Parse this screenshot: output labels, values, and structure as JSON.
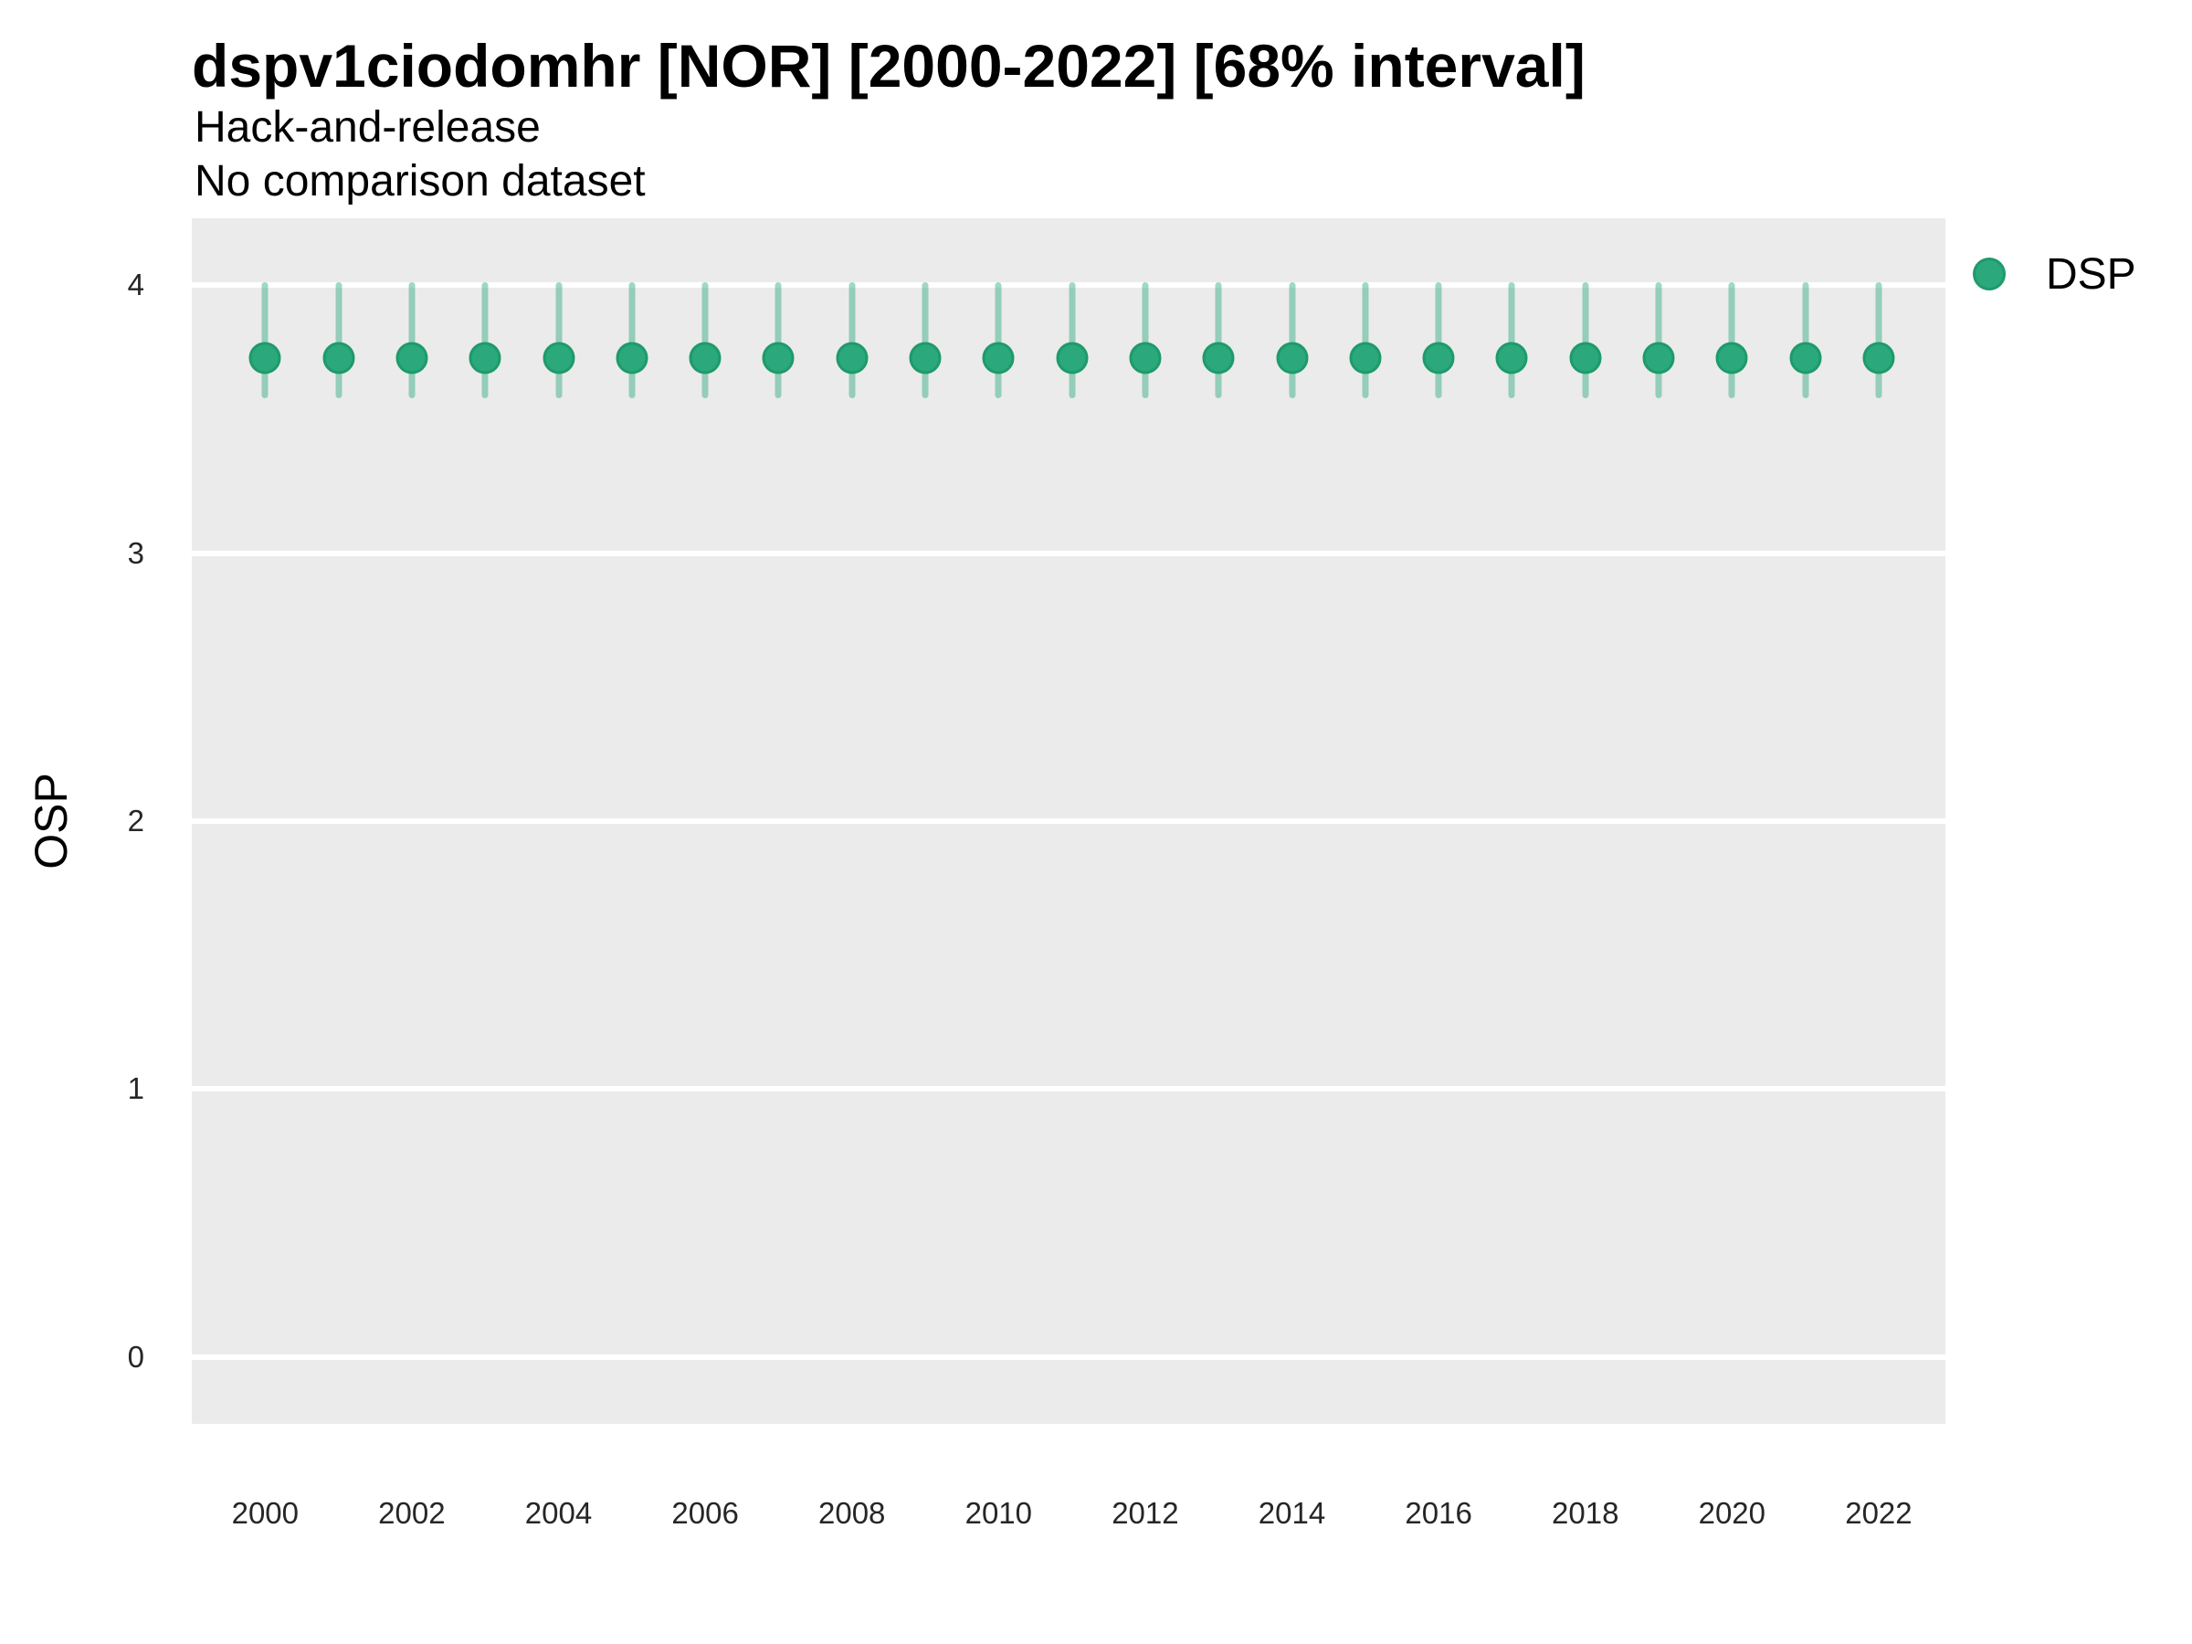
{
  "header": {
    "title": "dspv1ciodomhr [NOR] [2000-2022] [68% interval]",
    "subtitle_line1": "Hack-and-release",
    "subtitle_line2": "No comparison dataset"
  },
  "legend": {
    "position": "right",
    "items": [
      {
        "label": "DSP",
        "symbol": "filled-circle"
      }
    ]
  },
  "colors": {
    "point_fill": "#2BA97C",
    "point_stroke": "#1E9A6B",
    "interval_bar": "rgba(43,169,124,0.45)",
    "panel_background": "#EBEBEB",
    "gridline": "#FFFFFF",
    "tick_text": "#262626",
    "title_text": "#000000"
  },
  "axes": {
    "y_label": "OSP",
    "y_ticks": [
      4,
      3,
      2,
      1,
      0
    ],
    "x_ticks": [
      2000,
      2002,
      2004,
      2006,
      2008,
      2010,
      2012,
      2014,
      2016,
      2018,
      2020,
      2022
    ]
  },
  "chart_data": {
    "type": "scatter",
    "title": "dspv1ciodomhr [NOR] [2000-2022] [68% interval]",
    "subtitle": [
      "Hack-and-release",
      "No comparison dataset"
    ],
    "xlabel": "",
    "ylabel": "OSP",
    "interval_level": "68%",
    "grid": "horizontal-major-only",
    "legend_position": "right-top",
    "xlim": [
      1999,
      2022.91
    ],
    "ylim": [
      -0.25,
      4.25
    ],
    "x_ticks": [
      2000,
      2002,
      2004,
      2006,
      2008,
      2010,
      2012,
      2014,
      2016,
      2018,
      2020,
      2022
    ],
    "y_ticks": [
      0,
      1,
      2,
      3,
      4
    ],
    "series": [
      {
        "name": "DSP",
        "x": [
          2000,
          2001,
          2002,
          2003,
          2004,
          2005,
          2006,
          2007,
          2008,
          2009,
          2010,
          2011,
          2012,
          2013,
          2014,
          2015,
          2016,
          2017,
          2018,
          2019,
          2020,
          2021,
          2022
        ],
        "estimate": [
          3.73,
          3.73,
          3.73,
          3.73,
          3.73,
          3.73,
          3.73,
          3.73,
          3.73,
          3.73,
          3.73,
          3.73,
          3.73,
          3.73,
          3.73,
          3.73,
          3.73,
          3.73,
          3.73,
          3.73,
          3.73,
          3.73,
          3.73
        ],
        "lower": [
          3.59,
          3.59,
          3.59,
          3.59,
          3.59,
          3.59,
          3.59,
          3.59,
          3.59,
          3.59,
          3.59,
          3.59,
          3.59,
          3.59,
          3.59,
          3.59,
          3.59,
          3.59,
          3.59,
          3.59,
          3.59,
          3.59,
          3.59
        ],
        "upper": [
          4.0,
          4.0,
          4.0,
          4.0,
          4.0,
          4.0,
          4.0,
          4.0,
          4.0,
          4.0,
          4.0,
          4.0,
          4.0,
          4.0,
          4.0,
          4.0,
          4.0,
          4.0,
          4.0,
          4.0,
          4.0,
          4.0,
          4.0
        ]
      }
    ]
  }
}
